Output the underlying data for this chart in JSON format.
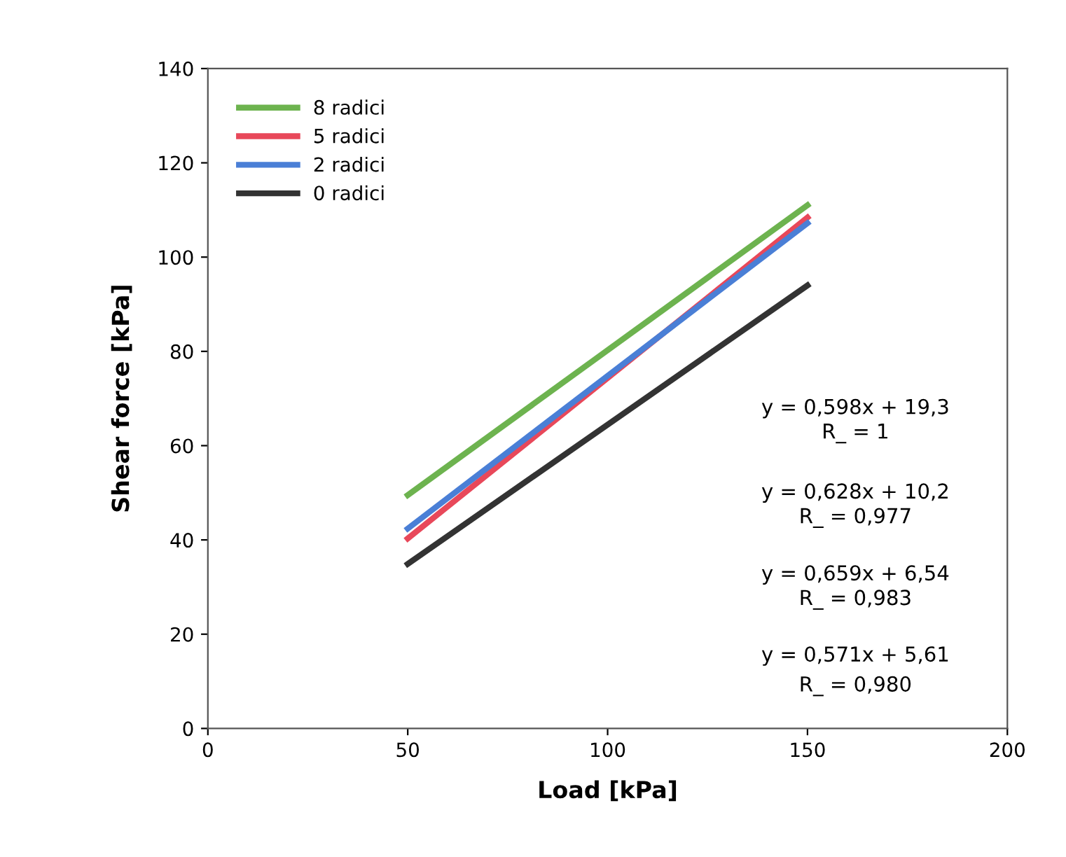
{
  "chart_data": {
    "type": "line",
    "xlabel": "Load [kPa]",
    "ylabel": "Shear force [kPa]",
    "x": [
      50,
      150
    ],
    "series": [
      {
        "name": "8 radici",
        "color": "#6db34f",
        "values": [
          49.5,
          111
        ]
      },
      {
        "name": "5 radici",
        "color": "#e8485a",
        "values": [
          40.3,
          108.4
        ]
      },
      {
        "name": "2 radici",
        "color": "#4a7fd6",
        "values": [
          42.4,
          107.2
        ]
      },
      {
        "name": "0 radici",
        "color": "#333333",
        "values": [
          34.9,
          94
        ]
      }
    ],
    "xlim": [
      0,
      200
    ],
    "xticks": [
      0,
      50,
      100,
      150,
      200
    ],
    "ylim": [
      0,
      140
    ],
    "yticks": [
      0,
      20,
      40,
      60,
      80,
      100,
      120,
      140
    ],
    "grid": false,
    "legend": "top left",
    "marker": "none",
    "line_style": "solid",
    "annotations": [
      "y = 0,598x + 19,3",
      "R_ = 1",
      "y = 0,628x + 10,2",
      "R_ = 0,977",
      "y = 0,659x + 6,54",
      "R_ = 0,983",
      "y = 0,571x + 5,61",
      "R_ = 0,980"
    ]
  }
}
